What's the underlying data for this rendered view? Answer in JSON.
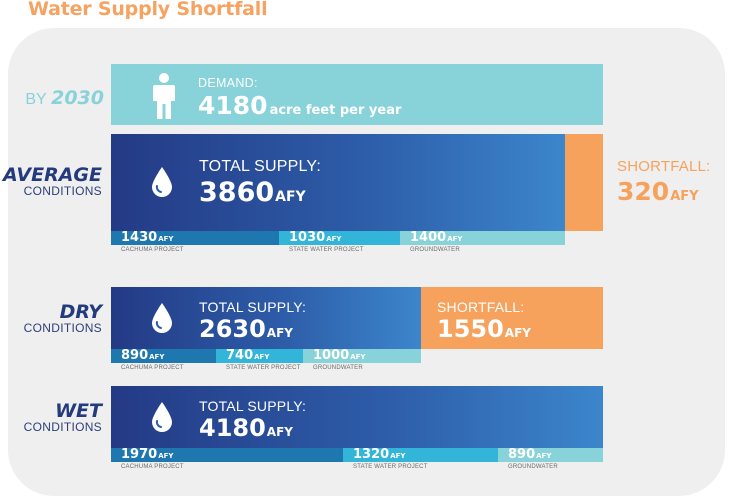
{
  "title": "Water Supply Shortfall",
  "unit_short": "AFY",
  "colors": {
    "title": "#f6a261",
    "demand_bar": "#88d2d9",
    "supply_gradient_start": "#243a85",
    "supply_gradient_end": "#3c86cc",
    "shortfall": "#f6a25d",
    "cachuma": "#1f77b0",
    "state_water": "#33b4d9",
    "groundwater": "#88d2d9"
  },
  "demand": {
    "row_label_prefix": "BY",
    "row_label_year": "2030",
    "label": "DEMAND:",
    "value": "4180",
    "unit": "acre feet per year",
    "icon": "person-icon"
  },
  "chart_data": {
    "type": "bar",
    "title": "Water Supply Shortfall",
    "unit": "acre feet per year (AFY)",
    "demand": 4180,
    "categories": [
      "AVERAGE CONDITIONS",
      "DRY CONDITIONS",
      "WET CONDITIONS"
    ],
    "series": [
      {
        "name": "CACHUMA PROJECT",
        "values": [
          1430,
          890,
          1970
        ]
      },
      {
        "name": "STATE WATER PROJECT",
        "values": [
          1030,
          740,
          1320
        ]
      },
      {
        "name": "GROUNDWATER",
        "values": [
          1400,
          1000,
          890
        ]
      }
    ],
    "total_supply": [
      3860,
      2630,
      4180
    ],
    "shortfall": [
      320,
      1550,
      null
    ]
  },
  "conditions": [
    {
      "key": "average",
      "name_big": "AVERAGE",
      "name_small": "CONDITIONS",
      "supply_label": "TOTAL SUPPLY:",
      "supply_value": "3860",
      "shortfall_label": "SHORTFALL:",
      "shortfall_value": "320",
      "segments": [
        {
          "value": "1430",
          "name": "CACHUMA PROJECT"
        },
        {
          "value": "1030",
          "name": "STATE WATER PROJECT"
        },
        {
          "value": "1400",
          "name": "GROUNDWATER"
        }
      ]
    },
    {
      "key": "dry",
      "name_big": "DRY",
      "name_small": "CONDITIONS",
      "supply_label": "TOTAL SUPPLY:",
      "supply_value": "2630",
      "shortfall_label": "SHORTFALL:",
      "shortfall_value": "1550",
      "segments": [
        {
          "value": "890",
          "name": "CACHUMA PROJECT"
        },
        {
          "value": "740",
          "name": "STATE WATER PROJECT"
        },
        {
          "value": "1000",
          "name": "GROUNDWATER"
        }
      ]
    },
    {
      "key": "wet",
      "name_big": "WET",
      "name_small": "CONDITIONS",
      "supply_label": "TOTAL SUPPLY:",
      "supply_value": "4180",
      "segments": [
        {
          "value": "1970",
          "name": "CACHUMA PROJECT"
        },
        {
          "value": "1320",
          "name": "STATE WATER PROJECT"
        },
        {
          "value": "890",
          "name": "GROUNDWATER"
        }
      ]
    }
  ]
}
